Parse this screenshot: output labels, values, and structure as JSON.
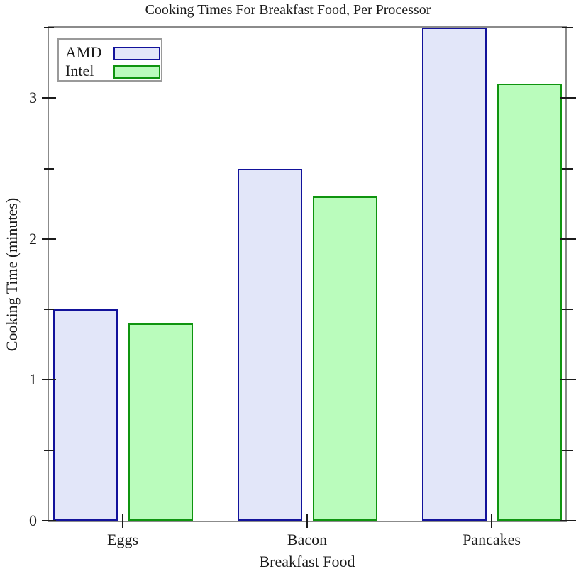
{
  "chart_data": {
    "type": "bar",
    "title": "Cooking Times For Breakfast Food, Per Processor",
    "xlabel": "Breakfast Food",
    "ylabel": "Cooking Time (minutes)",
    "categories": [
      "Eggs",
      "Bacon",
      "Pancakes"
    ],
    "series": [
      {
        "name": "AMD",
        "values": [
          1.5,
          2.5,
          3.5
        ],
        "fill_color": "#e2e6f9",
        "border_color": "#12129b"
      },
      {
        "name": "Intel",
        "values": [
          1.4,
          2.3,
          3.1
        ],
        "fill_color": "#bafcbc",
        "border_color": "#0f940f"
      }
    ],
    "ylim": [
      0,
      3.5
    ],
    "yticks_major": [
      0,
      1,
      2,
      3
    ],
    "ytick_labels": [
      "0",
      "1",
      "2",
      "3"
    ],
    "yticks_minor": [
      0.5,
      1.5,
      2.5,
      3.5
    ],
    "legend": {
      "position": "top-left"
    },
    "grid": false,
    "frame_color": "#8b8b8b",
    "tick_color": "#1b1b1b"
  }
}
